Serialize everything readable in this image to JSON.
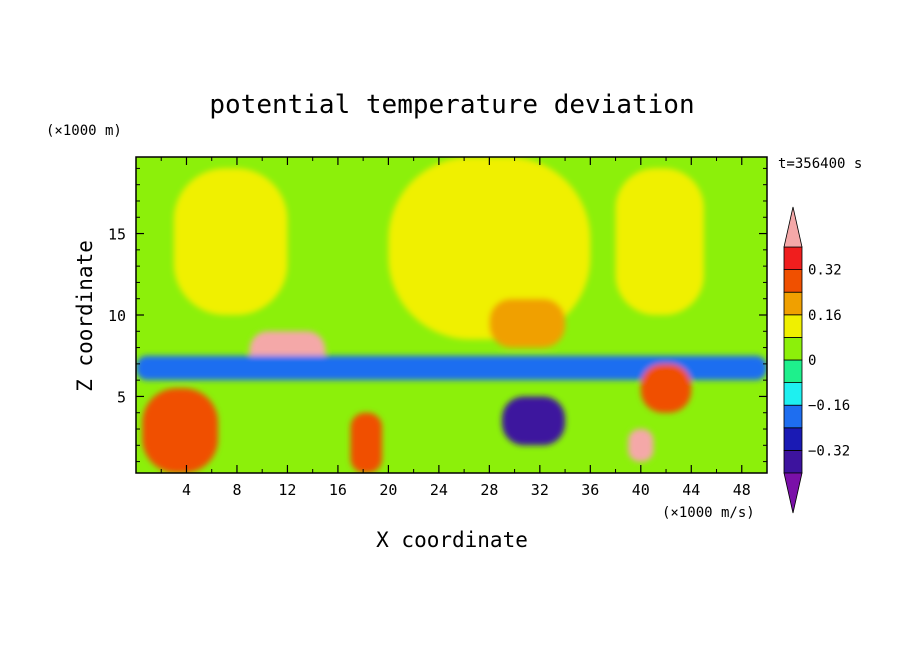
{
  "chart_data": {
    "type": "heatmap",
    "title": "potential temperature deviation",
    "xlabel": "X coordinate",
    "ylabel": "Z coordinate",
    "x_unit": "(×1000 m/s)",
    "y_unit": "(×1000 m)",
    "time_label": "t=356400 s",
    "xlim": [
      0,
      50
    ],
    "ylim": [
      0.3,
      19.7
    ],
    "xticks": [
      "4",
      "8",
      "12",
      "16",
      "20",
      "24",
      "28",
      "32",
      "36",
      "40",
      "44",
      "48"
    ],
    "yticks": [
      "5",
      "10",
      "15"
    ],
    "colorbar": {
      "levels": [
        -0.4,
        -0.32,
        -0.24,
        -0.16,
        -0.08,
        0,
        0.08,
        0.16,
        0.24,
        0.32,
        0.4
      ],
      "labels": [
        "0.32",
        "0.16",
        "0",
        "−0.16",
        "−0.32"
      ],
      "label_values": [
        0.32,
        0.16,
        0,
        -0.16,
        -0.32
      ],
      "colors": [
        "#7a10a8",
        "#3d139e",
        "#1a1ab4",
        "#1e6ef0",
        "#1ef0f0",
        "#1ef08c",
        "#8cf00a",
        "#f0f000",
        "#f0a000",
        "#f05000",
        "#f01e1e",
        "#f4a8a8"
      ]
    },
    "background_value": 0.04,
    "features": [
      {
        "region": "upper-left plume",
        "x": [
          3,
          12
        ],
        "z": [
          10,
          19
        ],
        "value": 0.1
      },
      {
        "region": "upper-center plume",
        "x": [
          20,
          36
        ],
        "z": [
          8.5,
          19.7
        ],
        "value": 0.1
      },
      {
        "region": "upper-right plume",
        "x": [
          38,
          45
        ],
        "z": [
          10,
          19
        ],
        "value": 0.1
      },
      {
        "region": "warm core",
        "x": [
          28,
          34
        ],
        "z": [
          8,
          11
        ],
        "value": 0.2
      },
      {
        "region": "peak warm anomaly",
        "x": [
          9,
          15
        ],
        "z": [
          6.5,
          9
        ],
        "value": 0.44
      },
      {
        "region": "peak warm anomaly",
        "x": [
          39,
          41
        ],
        "z": [
          1,
          3
        ],
        "value": 0.44
      },
      {
        "region": "cold anomaly",
        "x": [
          29,
          34
        ],
        "z": [
          2,
          5
        ],
        "value": -0.4
      },
      {
        "region": "cold layer",
        "x": [
          0,
          50
        ],
        "z": [
          6,
          7.5
        ],
        "value": -0.2
      },
      {
        "region": "warm anomaly",
        "x": [
          0.5,
          6.5
        ],
        "z": [
          0.3,
          5.5
        ],
        "value": 0.3
      },
      {
        "region": "warm anomaly",
        "x": [
          17,
          19.5
        ],
        "z": [
          0.3,
          4
        ],
        "value": 0.3
      },
      {
        "region": "warm anomaly",
        "x": [
          40,
          44
        ],
        "z": [
          4,
          7
        ],
        "value": 0.3
      }
    ]
  }
}
